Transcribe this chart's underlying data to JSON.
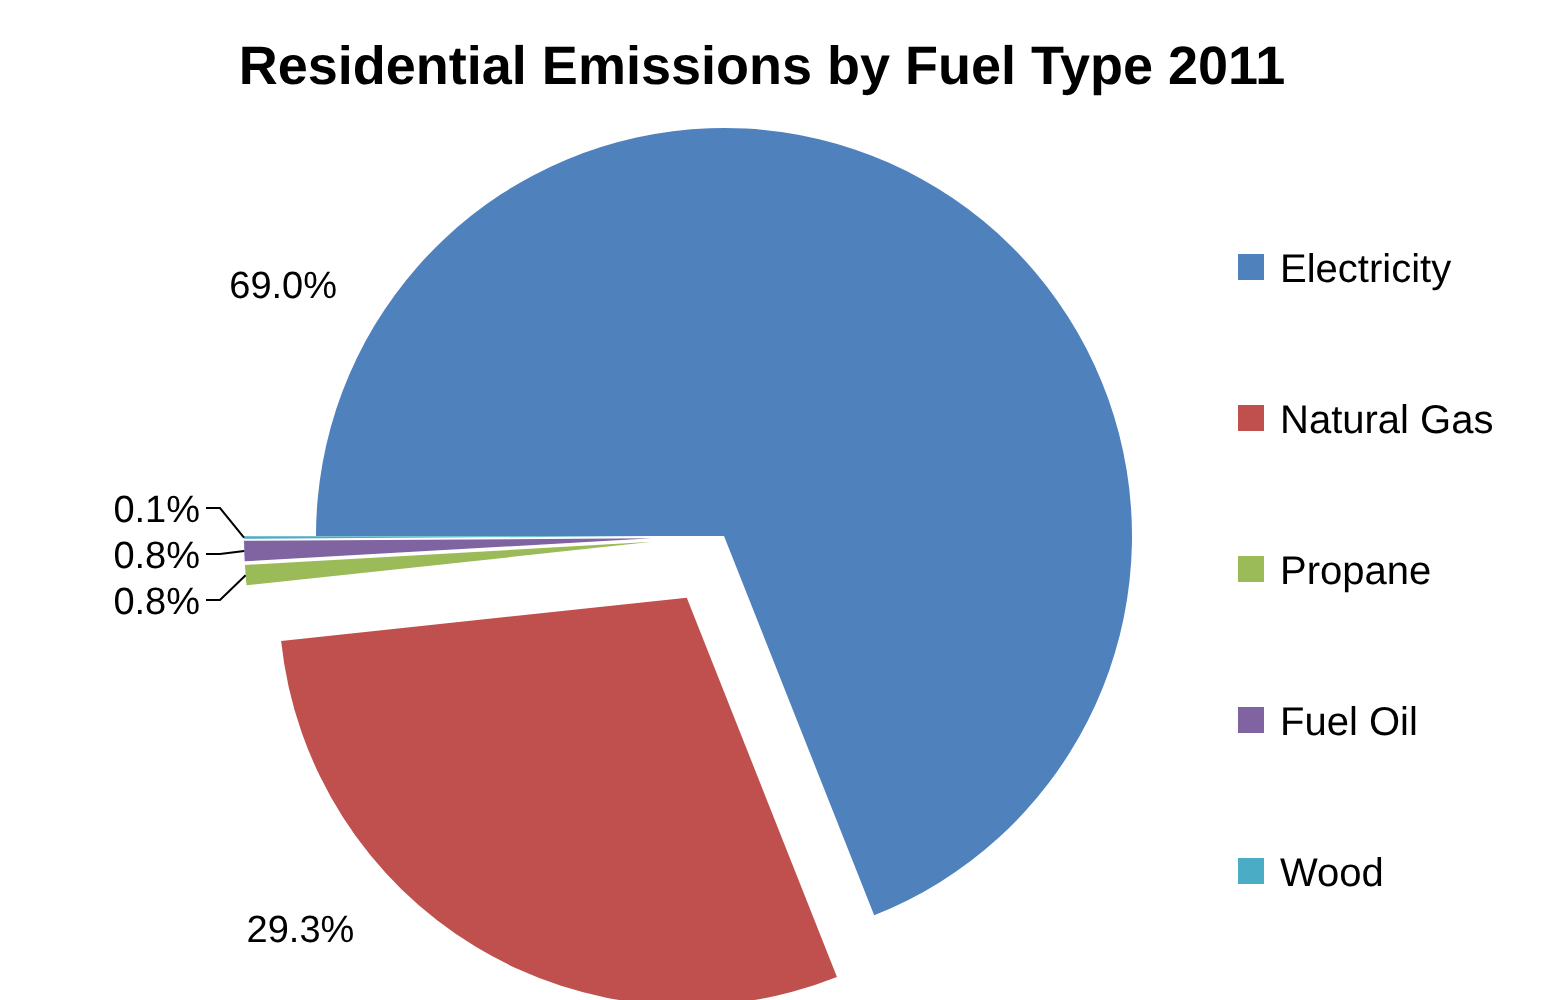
{
  "chart_data": {
    "type": "pie",
    "title": "Residential Emissions by Fuel Type 2011",
    "categories": [
      "Electricity",
      "Natural Gas",
      "Propane",
      "Fuel Oil",
      "Wood"
    ],
    "values": [
      69.0,
      29.3,
      0.8,
      0.8,
      0.1
    ],
    "colors": [
      "#4f81bd",
      "#c0504d",
      "#9bbb59",
      "#8064a2",
      "#4bacc6"
    ],
    "value_labels": [
      "69.0%",
      "29.3%",
      "0.8%",
      "0.8%",
      "0.1%"
    ],
    "legend": "right"
  }
}
